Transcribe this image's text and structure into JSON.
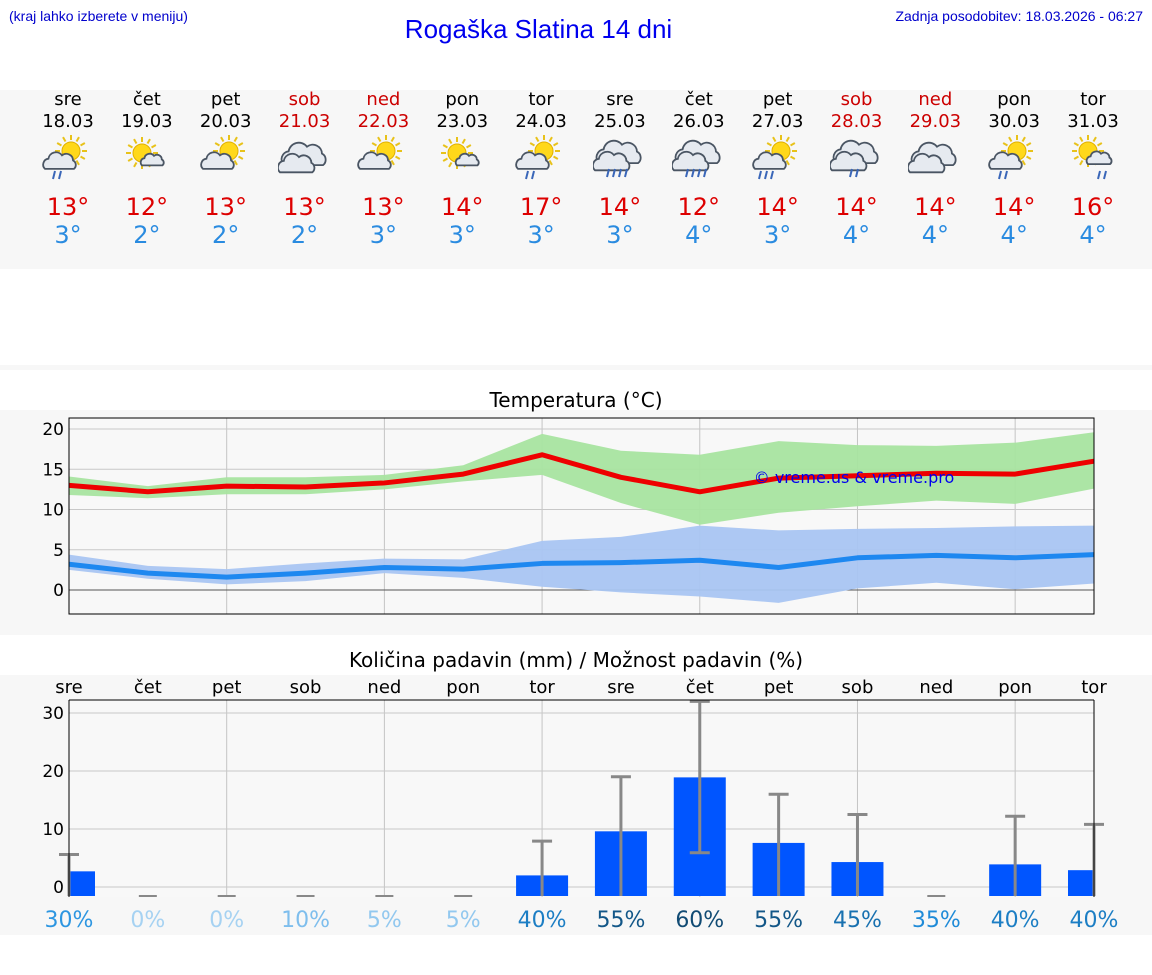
{
  "header": {
    "menu_hint": "(kraj lahko izberete v meniju)",
    "title": "Rogaška Slatina 14 dni",
    "last_update": "Zadnja posodobitev: 18.03.2026 - 06:27"
  },
  "days": [
    {
      "name": "sre",
      "date": "18.03",
      "weekend": false,
      "icon": "sun-cloud-light-rain-icon",
      "tmax": "13°",
      "tmin": "3°"
    },
    {
      "name": "čet",
      "date": "19.03",
      "weekend": false,
      "icon": "sun-small-cloud-icon",
      "tmax": "12°",
      "tmin": "2°"
    },
    {
      "name": "pet",
      "date": "20.03",
      "weekend": false,
      "icon": "sun-cloud-icon",
      "tmax": "13°",
      "tmin": "2°"
    },
    {
      "name": "sob",
      "date": "21.03",
      "weekend": true,
      "icon": "cloudy-icon",
      "tmax": "13°",
      "tmin": "2°"
    },
    {
      "name": "ned",
      "date": "22.03",
      "weekend": true,
      "icon": "sun-cloud-icon",
      "tmax": "13°",
      "tmin": "3°"
    },
    {
      "name": "pon",
      "date": "23.03",
      "weekend": false,
      "icon": "sun-small-cloud-icon",
      "tmax": "14°",
      "tmin": "3°"
    },
    {
      "name": "tor",
      "date": "24.03",
      "weekend": false,
      "icon": "sun-cloud-light-rain-icon",
      "tmax": "17°",
      "tmin": "3°"
    },
    {
      "name": "sre",
      "date": "25.03",
      "weekend": false,
      "icon": "cloud-rain-icon",
      "tmax": "14°",
      "tmin": "3°"
    },
    {
      "name": "čet",
      "date": "26.03",
      "weekend": false,
      "icon": "cloud-rain-icon",
      "tmax": "12°",
      "tmin": "4°"
    },
    {
      "name": "pet",
      "date": "27.03",
      "weekend": false,
      "icon": "sun-cloud-rain-icon",
      "tmax": "14°",
      "tmin": "3°"
    },
    {
      "name": "sob",
      "date": "28.03",
      "weekend": true,
      "icon": "cloud-light-rain-icon",
      "tmax": "14°",
      "tmin": "4°"
    },
    {
      "name": "ned",
      "date": "29.03",
      "weekend": true,
      "icon": "cloudy-icon",
      "tmax": "14°",
      "tmin": "4°"
    },
    {
      "name": "pon",
      "date": "30.03",
      "weekend": false,
      "icon": "sun-cloud-light-rain-icon",
      "tmax": "14°",
      "tmin": "4°"
    },
    {
      "name": "tor",
      "date": "31.03",
      "weekend": false,
      "icon": "sun-small-cloud-light-rain-icon",
      "tmax": "16°",
      "tmin": "4°"
    }
  ],
  "colors": {
    "max_line": "#ee0000",
    "max_band": "#a8e4a0",
    "min_line": "#1e88f0",
    "min_band": "#a9c5f2",
    "bar": "#0055ff",
    "error_bar": "#888888"
  },
  "chart_data": [
    {
      "type": "line",
      "title": "Temperatura (°C)",
      "watermark": "© vreme.us & vreme.pro",
      "ylim": [
        -3,
        21
      ],
      "yticks": [
        0,
        5,
        10,
        15,
        20
      ],
      "x": [
        0,
        1,
        2,
        3,
        4,
        5,
        6,
        7,
        8,
        9,
        10,
        11,
        12,
        13
      ],
      "series": [
        {
          "name": "max",
          "values": [
            13.0,
            12.2,
            12.9,
            12.8,
            13.3,
            14.4,
            16.8,
            14.0,
            12.2,
            13.9,
            14.2,
            14.5,
            14.4,
            16.0
          ]
        },
        {
          "name": "max_low",
          "values": [
            11.8,
            11.4,
            11.9,
            11.9,
            12.5,
            13.5,
            14.3,
            10.8,
            8.1,
            9.6,
            10.4,
            11.1,
            10.7,
            12.6
          ]
        },
        {
          "name": "max_high",
          "values": [
            14.1,
            12.9,
            14.0,
            14.0,
            14.3,
            15.5,
            19.4,
            17.3,
            16.8,
            18.5,
            18.0,
            17.9,
            18.3,
            19.6
          ]
        },
        {
          "name": "min",
          "values": [
            3.2,
            2.1,
            1.6,
            2.1,
            2.8,
            2.6,
            3.3,
            3.4,
            3.7,
            2.8,
            4.0,
            4.3,
            4.0,
            4.4
          ]
        },
        {
          "name": "min_low",
          "values": [
            2.5,
            1.4,
            0.7,
            1.1,
            2.1,
            1.5,
            0.4,
            -0.3,
            -0.8,
            -1.6,
            0.2,
            0.9,
            0.1,
            0.8
          ]
        },
        {
          "name": "min_high",
          "values": [
            4.4,
            3.0,
            2.6,
            3.3,
            3.9,
            3.8,
            6.1,
            6.6,
            8.0,
            7.4,
            7.6,
            7.7,
            7.9,
            8.0
          ]
        }
      ]
    },
    {
      "type": "bar",
      "title": "Količina padavin (mm) / Možnost padavin (%)",
      "categories": [
        "sre",
        "čet",
        "pet",
        "sob",
        "ned",
        "pon",
        "tor",
        "sre",
        "čet",
        "pet",
        "sob",
        "ned",
        "pon",
        "tor"
      ],
      "ylim": [
        -2,
        34
      ],
      "yticks": [
        0,
        10,
        20,
        30
      ],
      "values": [
        2.7,
        0,
        0,
        0,
        0,
        0,
        2.0,
        9.6,
        18.9,
        7.6,
        4.3,
        0,
        3.9,
        2.9
      ],
      "error_high": [
        5.6,
        0,
        0,
        0,
        0,
        0,
        7.9,
        19.0,
        32.0,
        16.0,
        12.5,
        0,
        12.2,
        10.8
      ],
      "error_low": [
        0,
        0,
        0,
        0,
        0,
        0,
        0,
        0,
        5.9,
        0,
        0,
        0,
        0,
        0
      ],
      "probability": [
        "30%",
        "0%",
        "0%",
        "10%",
        "5%",
        "5%",
        "40%",
        "55%",
        "60%",
        "55%",
        "45%",
        "35%",
        "40%",
        "40%"
      ],
      "probability_values": [
        30,
        0,
        0,
        10,
        5,
        5,
        40,
        55,
        60,
        55,
        45,
        35,
        40,
        40
      ]
    }
  ]
}
